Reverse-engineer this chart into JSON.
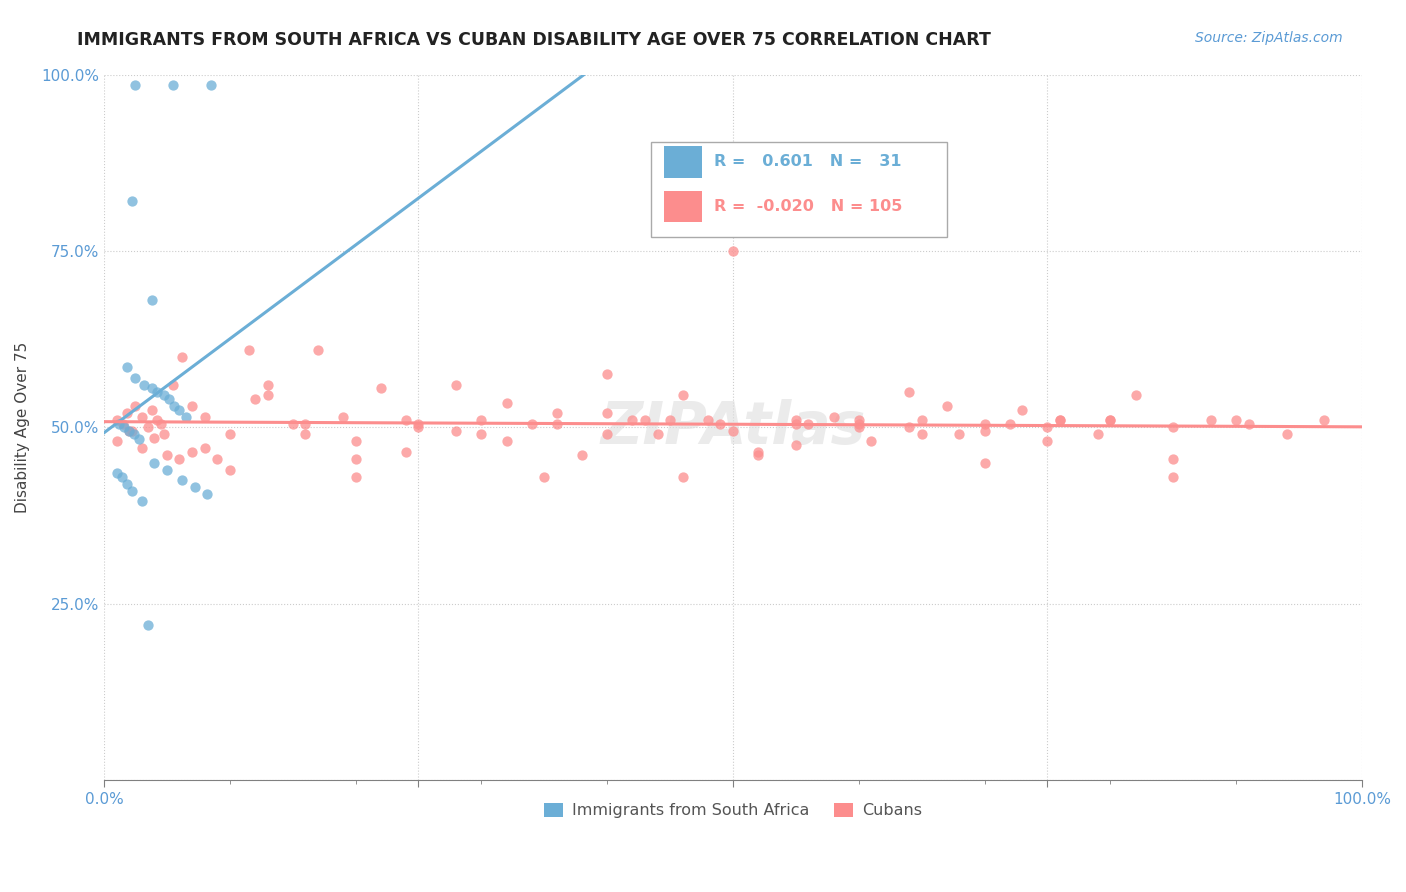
{
  "title": "IMMIGRANTS FROM SOUTH AFRICA VS CUBAN DISABILITY AGE OVER 75 CORRELATION CHART",
  "source": "Source: ZipAtlas.com",
  "ylabel": "Disability Age Over 75",
  "xlim": [
    0,
    1
  ],
  "ylim": [
    0,
    1
  ],
  "xtick_positions": [
    0,
    0.25,
    0.5,
    0.75,
    1.0
  ],
  "ytick_positions": [
    0,
    0.25,
    0.5,
    0.75,
    1.0
  ],
  "xticklabels": [
    "0.0%",
    "",
    "",
    "",
    "100.0%"
  ],
  "yticklabels": [
    "",
    "25.0%",
    "50.0%",
    "75.0%",
    "100.0%"
  ],
  "legend_entries": [
    "Immigrants from South Africa",
    "Cubans"
  ],
  "blue_color": "#6BAED6",
  "pink_color": "#FC8D8D",
  "blue_r": 0.601,
  "blue_n": 31,
  "pink_r": -0.02,
  "pink_n": 105,
  "sa_x": [
    0.025,
    0.055,
    0.085,
    0.022,
    0.038,
    0.018,
    0.025,
    0.032,
    0.038,
    0.042,
    0.048,
    0.052,
    0.056,
    0.06,
    0.065,
    0.012,
    0.016,
    0.02,
    0.024,
    0.028,
    0.04,
    0.05,
    0.062,
    0.072,
    0.082,
    0.01,
    0.014,
    0.018,
    0.022,
    0.03,
    0.035
  ],
  "sa_y": [
    0.985,
    0.985,
    0.985,
    0.82,
    0.68,
    0.585,
    0.57,
    0.56,
    0.555,
    0.55,
    0.545,
    0.54,
    0.53,
    0.525,
    0.515,
    0.505,
    0.5,
    0.495,
    0.49,
    0.483,
    0.45,
    0.44,
    0.425,
    0.415,
    0.405,
    0.435,
    0.43,
    0.42,
    0.41,
    0.395,
    0.22
  ],
  "cu_x": [
    0.01,
    0.015,
    0.018,
    0.022,
    0.025,
    0.03,
    0.035,
    0.038,
    0.042,
    0.045,
    0.048,
    0.055,
    0.062,
    0.07,
    0.08,
    0.09,
    0.1,
    0.115,
    0.13,
    0.15,
    0.17,
    0.19,
    0.22,
    0.25,
    0.28,
    0.32,
    0.36,
    0.4,
    0.43,
    0.46,
    0.49,
    0.52,
    0.55,
    0.58,
    0.61,
    0.64,
    0.67,
    0.7,
    0.73,
    0.76,
    0.79,
    0.82,
    0.85,
    0.88,
    0.91,
    0.94,
    0.97,
    0.01,
    0.02,
    0.03,
    0.04,
    0.05,
    0.06,
    0.07,
    0.08,
    0.1,
    0.13,
    0.16,
    0.2,
    0.24,
    0.12,
    0.16,
    0.2,
    0.24,
    0.28,
    0.32,
    0.36,
    0.4,
    0.44,
    0.48,
    0.52,
    0.56,
    0.6,
    0.64,
    0.68,
    0.72,
    0.76,
    0.3,
    0.34,
    0.38,
    0.42,
    0.46,
    0.5,
    0.55,
    0.6,
    0.65,
    0.7,
    0.75,
    0.8,
    0.85,
    0.45,
    0.5,
    0.55,
    0.6,
    0.65,
    0.7,
    0.75,
    0.8,
    0.85,
    0.9,
    0.2,
    0.25,
    0.3,
    0.35,
    0.4
  ],
  "cu_y": [
    0.51,
    0.505,
    0.52,
    0.495,
    0.53,
    0.515,
    0.5,
    0.525,
    0.51,
    0.505,
    0.49,
    0.56,
    0.6,
    0.53,
    0.515,
    0.455,
    0.44,
    0.61,
    0.56,
    0.505,
    0.61,
    0.515,
    0.555,
    0.5,
    0.56,
    0.48,
    0.52,
    0.575,
    0.51,
    0.545,
    0.505,
    0.46,
    0.51,
    0.515,
    0.48,
    0.55,
    0.53,
    0.495,
    0.525,
    0.51,
    0.49,
    0.545,
    0.5,
    0.51,
    0.505,
    0.49,
    0.51,
    0.48,
    0.495,
    0.47,
    0.485,
    0.46,
    0.455,
    0.465,
    0.47,
    0.49,
    0.545,
    0.505,
    0.43,
    0.465,
    0.54,
    0.49,
    0.48,
    0.51,
    0.495,
    0.535,
    0.505,
    0.52,
    0.49,
    0.51,
    0.465,
    0.505,
    0.51,
    0.5,
    0.49,
    0.505,
    0.51,
    0.49,
    0.505,
    0.46,
    0.51,
    0.43,
    0.75,
    0.475,
    0.505,
    0.49,
    0.45,
    0.5,
    0.51,
    0.43,
    0.51,
    0.495,
    0.505,
    0.5,
    0.51,
    0.505,
    0.48,
    0.51,
    0.455,
    0.51,
    0.455,
    0.505,
    0.51,
    0.43,
    0.49
  ]
}
